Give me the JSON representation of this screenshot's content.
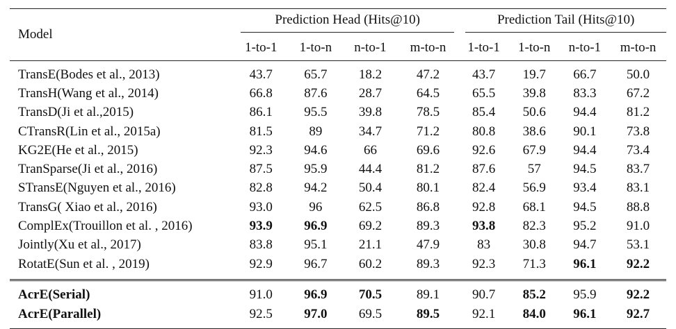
{
  "table": {
    "model_header": "Model",
    "group_headers": [
      "Prediction Head (Hits@10)",
      "Prediction Tail (Hits@10)"
    ],
    "sub_headers": [
      "1-to-1",
      "1-to-n",
      "n-to-1",
      "m-to-n",
      "1-to-1",
      "1-to-n",
      "n-to-1",
      "m-to-n"
    ],
    "rows": [
      {
        "model": "TransE(Bodes et al., 2013)",
        "values": [
          "43.7",
          "65.7",
          "18.2",
          "47.2",
          "43.7",
          "19.7",
          "66.7",
          "50.0"
        ],
        "bold": []
      },
      {
        "model": "TransH(Wang et al., 2014)",
        "values": [
          "66.8",
          "87.6",
          "28.7",
          "64.5",
          "65.5",
          "39.8",
          "83.3",
          "67.2"
        ],
        "bold": []
      },
      {
        "model": "TransD(Ji et al.,2015)",
        "values": [
          "86.1",
          "95.5",
          "39.8",
          "78.5",
          "85.4",
          "50.6",
          "94.4",
          "81.2"
        ],
        "bold": []
      },
      {
        "model": "CTransR(Lin et al., 2015a)",
        "values": [
          "81.5",
          "89",
          "34.7",
          "71.2",
          "80.8",
          "38.6",
          "90.1",
          "73.8"
        ],
        "bold": []
      },
      {
        "model": "KG2E(He et al., 2015)",
        "values": [
          "92.3",
          "94.6",
          "66",
          "69.6",
          "92.6",
          "67.9",
          "94.4",
          "73.4"
        ],
        "bold": []
      },
      {
        "model": "TranSparse(Ji et al., 2016)",
        "values": [
          "87.5",
          "95.9",
          "44.4",
          "81.2",
          "87.6",
          "57",
          "94.5",
          "83.7"
        ],
        "bold": []
      },
      {
        "model": "STransE(Nguyen et al., 2016)",
        "values": [
          "82.8",
          "94.2",
          "50.4",
          "80.1",
          "82.4",
          "56.9",
          "93.4",
          "83.1"
        ],
        "bold": []
      },
      {
        "model": "TransG( Xiao et al., 2016)",
        "values": [
          "93.0",
          "96",
          "62.5",
          "86.8",
          "92.8",
          "68.1",
          "94.5",
          "88.8"
        ],
        "bold": []
      },
      {
        "model": "ComplEx(Trouillon et al. , 2016)",
        "values": [
          "93.9",
          "96.9",
          "69.2",
          "89.3",
          "93.8",
          "82.3",
          "95.2",
          "91.0"
        ],
        "bold": [
          0,
          1,
          4
        ]
      },
      {
        "model": "Jointly(Xu et al., 2017)",
        "values": [
          "83.8",
          "95.1",
          "21.1",
          "47.9",
          "83",
          "30.8",
          "94.7",
          "53.1"
        ],
        "bold": []
      },
      {
        "model": "RotatE(Sun et al. , 2019)",
        "values": [
          "92.9",
          "96.7",
          "60.2",
          "89.3",
          "92.3",
          "71.3",
          "96.1",
          "92.2"
        ],
        "bold": [
          6,
          7
        ]
      }
    ],
    "our_rows": [
      {
        "model": "AcrE(Serial)",
        "values": [
          "91.0",
          "96.9",
          "70.5",
          "89.1",
          "90.7",
          "85.2",
          "95.9",
          "92.2"
        ],
        "bold": [
          1,
          2,
          5,
          7
        ]
      },
      {
        "model": "AcrE(Parallel)",
        "values": [
          "92.5",
          "97.0",
          "69.5",
          "89.5",
          "92.1",
          "84.0",
          "96.1",
          "92.7"
        ],
        "bold": [
          1,
          3,
          5,
          6,
          7
        ]
      }
    ]
  }
}
